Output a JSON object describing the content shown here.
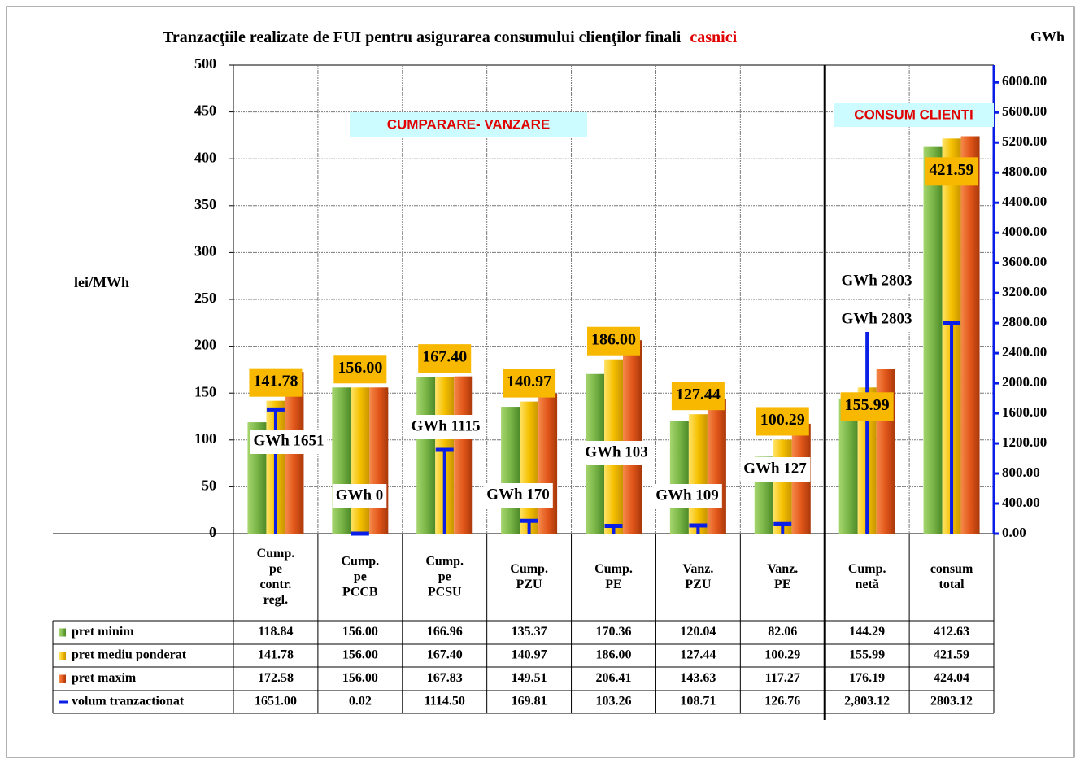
{
  "chart_data": {
    "type": "bar",
    "title": "Tranzacţiile realizate de FUI pentru  asigurarea consumului clienţilor finali",
    "title_highlight": "casnici",
    "y_label": "lei/MWh",
    "y2_label": "GWh",
    "categories": [
      [
        "Cump.",
        "pe",
        "contr.",
        "regl."
      ],
      [
        "Cump.",
        "pe",
        "PCCB"
      ],
      [
        "Cump.",
        "pe",
        "PCSU"
      ],
      [
        "Cump.",
        "PZU"
      ],
      [
        "Cump.",
        "PE"
      ],
      [
        "Vanz.",
        "PZU"
      ],
      [
        "Vanz.",
        "PE"
      ],
      [
        "Cump.",
        "netă"
      ],
      [
        "consum",
        "total"
      ]
    ],
    "ylim": [
      0,
      500
    ],
    "yticks": [
      0,
      50,
      100,
      150,
      200,
      250,
      300,
      350,
      400,
      450,
      500
    ],
    "y2lim": [
      0,
      6230
    ],
    "y2ticks": [
      {
        "value": 0,
        "label": "0.00"
      },
      {
        "value": 400,
        "label": "400.00"
      },
      {
        "value": 800,
        "label": "800.00"
      },
      {
        "value": 1200,
        "label": "1200.00"
      },
      {
        "value": 1600,
        "label": "1600.00"
      },
      {
        "value": 2000,
        "label": "2000.00"
      },
      {
        "value": 2400,
        "label": "2400.00"
      },
      {
        "value": 2800,
        "label": "2800.00"
      },
      {
        "value": 3200,
        "label": "3200.00"
      },
      {
        "value": 3600,
        "label": "3600.00"
      },
      {
        "value": 4000,
        "label": "4000.00"
      },
      {
        "value": 4400,
        "label": "4400.00"
      },
      {
        "value": 4800,
        "label": "4800.00"
      },
      {
        "value": 5200,
        "label": "5200.00"
      },
      {
        "value": 5600,
        "label": "5600.00"
      },
      {
        "value": 6000,
        "label": "6000.00"
      }
    ],
    "grid": true,
    "series": [
      {
        "name": "pret minim",
        "color": "#7ab648",
        "values": [
          118.84,
          156.0,
          166.96,
          135.37,
          170.36,
          120.04,
          82.06,
          144.29,
          412.63
        ],
        "value_labels": [
          "118.84",
          "156.00",
          "166.96",
          "135.37",
          "170.36",
          "120.04",
          "82.06",
          "144.29",
          "412.63"
        ]
      },
      {
        "name": "pret mediu ponderat",
        "color": "#f5c000",
        "values": [
          141.78,
          156.0,
          167.4,
          140.97,
          186.0,
          127.44,
          100.29,
          155.99,
          421.59
        ],
        "value_labels": [
          "141.78",
          "156.00",
          "167.40",
          "140.97",
          "186.00",
          "127.44",
          "100.29",
          "155.99",
          "421.59"
        ]
      },
      {
        "name": "pret maxim",
        "color": "#e2561a",
        "values": [
          172.58,
          156.0,
          167.83,
          149.51,
          206.41,
          143.63,
          117.27,
          176.19,
          424.04
        ],
        "value_labels": [
          "172.58",
          "156.00",
          "167.83",
          "149.51",
          "206.41",
          "143.63",
          "117.27",
          "176.19",
          "424.04"
        ]
      },
      {
        "name": "volum tranzactionat",
        "color": "#0a1ee6",
        "axis": "y2",
        "values": [
          1651.0,
          0.02,
          1114.5,
          169.81,
          103.26,
          108.71,
          126.76,
          2803.12,
          2803.12
        ],
        "value_labels": [
          "1651.00",
          "0.02",
          "1114.50",
          "169.81",
          "103.26",
          "108.71",
          "126.76",
          "2,803.12",
          "2803.12"
        ]
      }
    ],
    "volume_labels": [
      "GWh 1651",
      "GWh 0",
      "GWh 1115",
      "GWh 170",
      "GWh 103",
      "GWh 109",
      "GWh 127",
      "GWh 2803",
      "GWh 2803"
    ],
    "annotations": [
      "CUMPARARE- VANZARE",
      "CONSUM CLIENTI"
    ]
  }
}
